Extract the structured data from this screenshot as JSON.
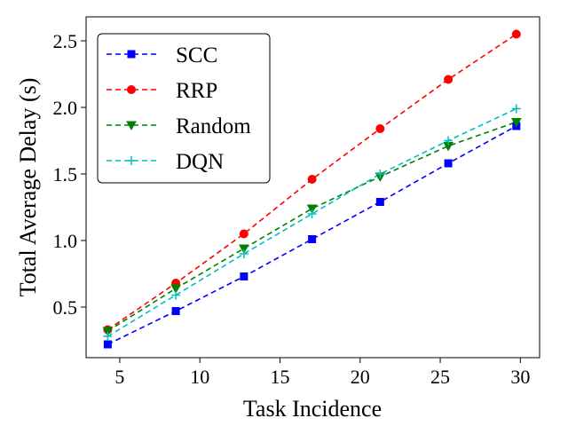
{
  "chart_data": {
    "type": "line",
    "title": "",
    "xlabel": "Task Incidence",
    "ylabel": "Total Average Delay (s)",
    "xlim": [
      2.9,
      31.2
    ],
    "ylim": [
      0.12,
      2.68
    ],
    "xticks": [
      5,
      10,
      15,
      20,
      25,
      30
    ],
    "yticks": [
      0.5,
      1.0,
      1.5,
      2.0,
      2.5
    ],
    "ytick_labels": [
      "0.5",
      "1.0",
      "1.5",
      "2.0",
      "2.5"
    ],
    "grid": false,
    "legend_position": "top-left",
    "x": [
      4.25,
      8.5,
      12.75,
      17.0,
      21.25,
      25.5,
      29.75
    ],
    "series": [
      {
        "name": "SCC",
        "color": "#0000ff",
        "marker": "square",
        "values": [
          0.22,
          0.47,
          0.73,
          1.01,
          1.29,
          1.58,
          1.86
        ]
      },
      {
        "name": "RRP",
        "color": "#ff0000",
        "marker": "circle",
        "values": [
          0.33,
          0.68,
          1.05,
          1.46,
          1.84,
          2.21,
          2.55
        ]
      },
      {
        "name": "Random",
        "color": "#008000",
        "marker": "triangle-down",
        "values": [
          0.32,
          0.64,
          0.94,
          1.24,
          1.48,
          1.71,
          1.89
        ]
      },
      {
        "name": "DQN",
        "color": "#00bfbf",
        "marker": "plus",
        "values": [
          0.28,
          0.59,
          0.9,
          1.2,
          1.5,
          1.75,
          1.99
        ]
      }
    ]
  }
}
